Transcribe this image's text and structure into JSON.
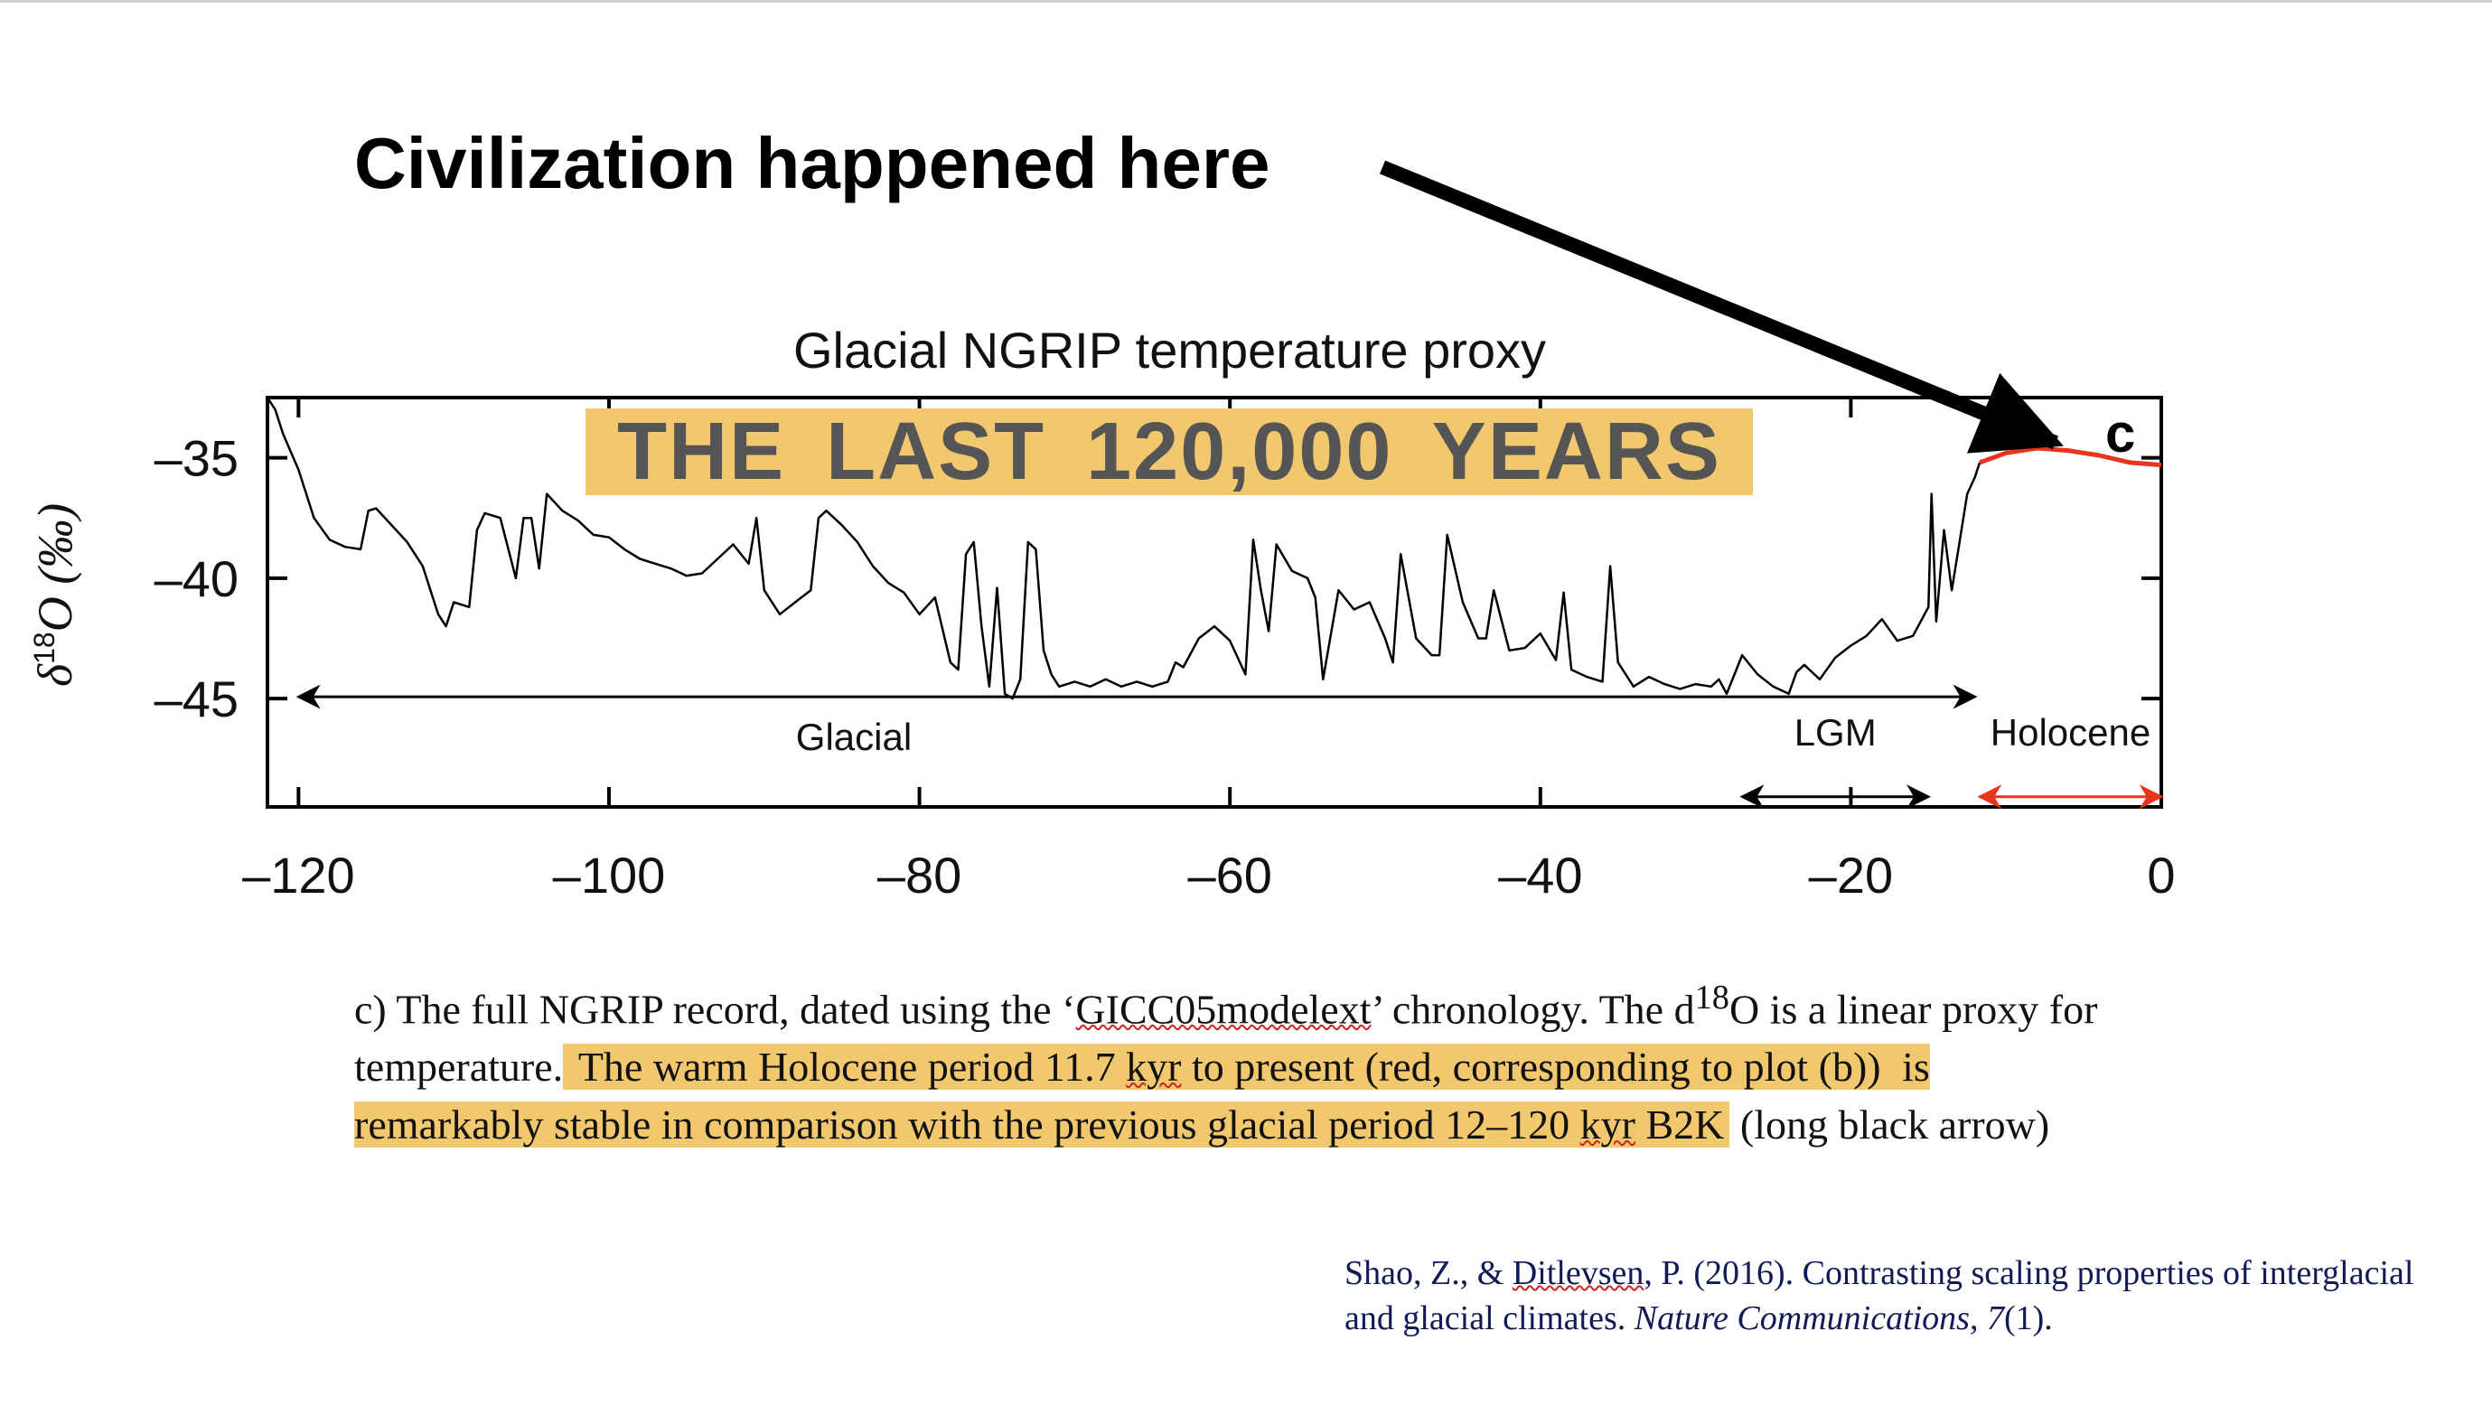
{
  "headline": "Civilization happened here",
  "banner": "THE  LAST  120,000  YEARS",
  "caption": {
    "p1": "c) The full NGRIP record, dated using the ‘",
    "p2": "GICC05modelext",
    "p3": "’ chronology. The d",
    "p4": "18",
    "p5": "O is a linear proxy for temperature.",
    "h1": " The warm Holocene period 11.7 ",
    "h2": "kyr",
    "h3": " to present (red, corresponding to plot (b))",
    "h4": " is remarkably stable in comparison with the previous glacial period 12–120 ",
    "h5": "kyr",
    "h6": " B2K",
    "p6": " (long black arrow)"
  },
  "citation": {
    "c1": "Shao, Z., & ",
    "c2": "Ditlevsen",
    "c3": ", P. (2016). Contrasting scaling properties of interglacial and glacial climates. ",
    "c4": "Nature Communications",
    "c5": ", ",
    "c6": "7",
    "c7": "(1)."
  },
  "colors": {
    "highlight": "#f2c86e",
    "holocene": "#e8341c",
    "glacial": "#000000"
  },
  "chart_data": {
    "type": "line",
    "title": "Glacial NGRIP temperature proxy",
    "panel_label": "c",
    "ylabel_symbol": "δ",
    "ylabel_sup": "18",
    "ylabel_rest": "O (‰)",
    "xlim": [
      -122,
      0
    ],
    "ylim": [
      -32.5,
      -49.5
    ],
    "xticks": [
      -120,
      -100,
      -80,
      -60,
      -40,
      -20,
      0
    ],
    "xtick_labels": [
      "–120",
      "–100",
      "–80",
      "–60",
      "–40",
      "–20",
      "0"
    ],
    "yticks": [
      -35,
      -40,
      -45
    ],
    "ytick_labels": [
      "–35",
      "–40",
      "–45"
    ],
    "series": [
      {
        "color": "#000000",
        "x": [
          -122,
          -121.5,
          -121,
          -120,
          -119,
          -118,
          -117,
          -116,
          -115.5,
          -115,
          -114,
          -113,
          -112,
          -111,
          -110.5,
          -110,
          -109,
          -108.5,
          -108,
          -107,
          -106,
          -105.5,
          -105,
          -104.5,
          -104,
          -103,
          -102,
          -101,
          -100,
          -99,
          -98,
          -97,
          -96,
          -95,
          -94,
          -93,
          -92,
          -91,
          -90.5,
          -90,
          -89,
          -88,
          -87,
          -86.5,
          -86,
          -85,
          -84,
          -83,
          -82,
          -81,
          -80,
          -79,
          -78,
          -77.5,
          -77,
          -76.5,
          -76,
          -75.5,
          -75,
          -74.5,
          -74,
          -73.5,
          -73,
          -72.5,
          -72,
          -71.5,
          -71,
          -70,
          -69,
          -68,
          -67,
          -66,
          -65,
          -64,
          -63.5,
          -63,
          -62,
          -61,
          -60,
          -59,
          -58.5,
          -58,
          -57.5,
          -57,
          -56,
          -55,
          -54.5,
          -54,
          -53,
          -52,
          -51,
          -50,
          -49.5,
          -49,
          -48,
          -47,
          -46.5,
          -46,
          -45,
          -44,
          -43.5,
          -43,
          -42,
          -41,
          -40,
          -39,
          -38.5,
          -38,
          -37,
          -36,
          -35.5,
          -35,
          -34,
          -33,
          -32,
          -31,
          -30,
          -29,
          -28.5,
          -28,
          -27,
          -26,
          -25,
          -24,
          -23.5,
          -23,
          -22,
          -21,
          -20,
          -19,
          -18,
          -17,
          -16,
          -15,
          -14.8,
          -14.5,
          -14,
          -13.5,
          -13,
          -12.5,
          -12,
          -11.7
        ],
        "y": [
          -32.5,
          -33,
          -34,
          -35.5,
          -37.5,
          -38.4,
          -38.7,
          -38.8,
          -37.2,
          -37.1,
          -37.8,
          -38.5,
          -39.5,
          -41.5,
          -42,
          -41,
          -41.2,
          -38,
          -37.3,
          -37.5,
          -40,
          -37.5,
          -37.5,
          -39.6,
          -36.5,
          -37.2,
          -37.6,
          -38.2,
          -38.3,
          -38.8,
          -39.2,
          -39.4,
          -39.6,
          -39.9,
          -39.8,
          -39.2,
          -38.6,
          -39.4,
          -37.5,
          -40.5,
          -41.5,
          -41,
          -40.5,
          -37.5,
          -37.2,
          -37.8,
          -38.5,
          -39.5,
          -40.2,
          -40.6,
          -41.5,
          -40.8,
          -43.5,
          -43.8,
          -39,
          -38.5,
          -42,
          -44.5,
          -40.4,
          -44.8,
          -45,
          -44.2,
          -38.5,
          -38.8,
          -43,
          -44,
          -44.5,
          -44.3,
          -44.5,
          -44.2,
          -44.5,
          -44.3,
          -44.5,
          -44.3,
          -43.5,
          -43.7,
          -42.5,
          -42,
          -42.6,
          -44,
          -38.4,
          -40.5,
          -42.2,
          -38.6,
          -39.7,
          -40,
          -40.8,
          -44.2,
          -40.5,
          -41.3,
          -41,
          -42.5,
          -43.5,
          -39,
          -42.5,
          -43.2,
          -43.2,
          -38.2,
          -41,
          -42.5,
          -42.5,
          -40.5,
          -43,
          -42.9,
          -42.3,
          -43.4,
          -40.6,
          -43.8,
          -44.1,
          -44.3,
          -39.5,
          -43.5,
          -44.5,
          -44.1,
          -44.4,
          -44.6,
          -44.4,
          -44.5,
          -44.2,
          -44.8,
          -43.2,
          -44,
          -44.5,
          -44.8,
          -43.9,
          -43.6,
          -44.2,
          -43.3,
          -42.8,
          -42.4,
          -41.7,
          -42.6,
          -42.4,
          -41.2,
          -36.5,
          -41.8,
          -38,
          -40.5,
          -38.5,
          -36.5,
          -35.8,
          -35.2
        ]
      },
      {
        "color": "#e8341c",
        "x": [
          -11.7,
          -10,
          -8,
          -6,
          -4,
          -2,
          0
        ],
        "y": [
          -35.2,
          -34.8,
          -34.6,
          -34.7,
          -34.9,
          -35.2,
          -35.3
        ]
      }
    ],
    "annotations": [
      {
        "label": "Glacial",
        "from": -120,
        "to": -12,
        "y": -45,
        "color": "#000000"
      },
      {
        "label": "LGM",
        "from": -27,
        "to": -15,
        "y": -47.5,
        "color": "#000000"
      },
      {
        "label": "Holocene",
        "from": -11.7,
        "to": 0,
        "y": -47.5,
        "color": "#e8341c"
      }
    ]
  }
}
